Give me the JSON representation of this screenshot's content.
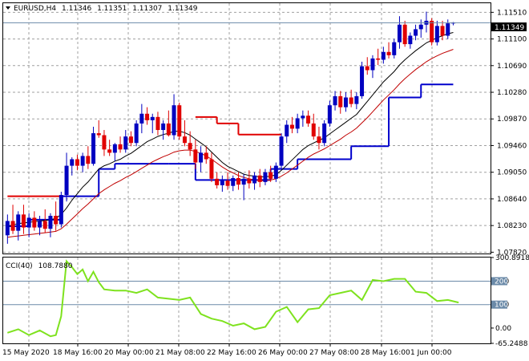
{
  "header": {
    "symbol": "EURUSD,H4",
    "open": "1.11346",
    "high": "1.11351",
    "low": "1.11307",
    "close": "1.11349"
  },
  "indicator": {
    "label": "CCI(40)",
    "value": "108.7880"
  },
  "current_price_label": "1.11349",
  "colors": {
    "bull": "#0000c0",
    "bear": "#e00000",
    "ma_fast": "#000000",
    "ma_slow": "#c00000",
    "step_support": "#0000cc",
    "step_resist": "#e00000",
    "cci": "#7ee21e",
    "level_line": "#6b8aa8",
    "grid": "#a0a0a0"
  },
  "chart_data": [
    {
      "type": "candlestick",
      "title": "EURUSD,H4",
      "ylim": [
        1.078,
        1.1165
      ],
      "y_ticks": [
        "1.11510",
        "1.11100",
        "1.10690",
        "1.10280",
        "1.09870",
        "1.09460",
        "1.09050",
        "1.08640",
        "1.08230",
        "1.07820"
      ],
      "x_ticks": [
        "15 May 2020",
        "18 May 16:00",
        "20 May 00:00",
        "21 May 08:00",
        "22 May 16:00",
        "26 May 00:00",
        "27 May 08:00",
        "28 May 16:00",
        "1 Jun 00:00"
      ],
      "current_price": 1.11349,
      "candles": [
        {
          "o": 1.0808,
          "h": 1.084,
          "l": 1.0795,
          "c": 1.083
        },
        {
          "o": 1.083,
          "h": 1.0855,
          "l": 1.081,
          "c": 1.0815
        },
        {
          "o": 1.0815,
          "h": 1.0845,
          "l": 1.08,
          "c": 1.084
        },
        {
          "o": 1.084,
          "h": 1.0855,
          "l": 1.081,
          "c": 1.082
        },
        {
          "o": 1.082,
          "h": 1.0842,
          "l": 1.0805,
          "c": 1.0835
        },
        {
          "o": 1.0835,
          "h": 1.0845,
          "l": 1.0815,
          "c": 1.082
        },
        {
          "o": 1.082,
          "h": 1.0838,
          "l": 1.0808,
          "c": 1.083
        },
        {
          "o": 1.083,
          "h": 1.0848,
          "l": 1.0812,
          "c": 1.0818
        },
        {
          "o": 1.0818,
          "h": 1.0842,
          "l": 1.0805,
          "c": 1.0838
        },
        {
          "o": 1.0838,
          "h": 1.086,
          "l": 1.0815,
          "c": 1.0825
        },
        {
          "o": 1.0825,
          "h": 1.0875,
          "l": 1.082,
          "c": 1.087
        },
        {
          "o": 1.087,
          "h": 1.0935,
          "l": 1.086,
          "c": 1.0915
        },
        {
          "o": 1.0915,
          "h": 1.0928,
          "l": 1.09,
          "c": 1.0925
        },
        {
          "o": 1.0925,
          "h": 1.0932,
          "l": 1.0908,
          "c": 1.0915
        },
        {
          "o": 1.0915,
          "h": 1.0935,
          "l": 1.0905,
          "c": 1.093
        },
        {
          "o": 1.093,
          "h": 1.0945,
          "l": 1.091,
          "c": 1.0918
        },
        {
          "o": 1.0918,
          "h": 1.0975,
          "l": 1.0915,
          "c": 1.0965
        },
        {
          "o": 1.0965,
          "h": 1.0985,
          "l": 1.0958,
          "c": 1.0962
        },
        {
          "o": 1.0962,
          "h": 1.097,
          "l": 1.093,
          "c": 1.094
        },
        {
          "o": 1.094,
          "h": 1.0955,
          "l": 1.093,
          "c": 1.0935
        },
        {
          "o": 1.0935,
          "h": 1.095,
          "l": 1.0922,
          "c": 1.0948
        },
        {
          "o": 1.0948,
          "h": 1.096,
          "l": 1.0935,
          "c": 1.094
        },
        {
          "o": 1.094,
          "h": 1.097,
          "l": 1.0935,
          "c": 1.096
        },
        {
          "o": 1.096,
          "h": 1.0968,
          "l": 1.0945,
          "c": 1.095
        },
        {
          "o": 1.095,
          "h": 1.0985,
          "l": 1.0945,
          "c": 1.098
        },
        {
          "o": 1.098,
          "h": 1.101,
          "l": 1.0965,
          "c": 1.0995
        },
        {
          "o": 1.0995,
          "h": 1.1005,
          "l": 1.0978,
          "c": 1.0985
        },
        {
          "o": 1.0985,
          "h": 1.0995,
          "l": 1.0965,
          "c": 1.099
        },
        {
          "o": 1.099,
          "h": 1.0998,
          "l": 1.0962,
          "c": 1.097
        },
        {
          "o": 1.097,
          "h": 1.0985,
          "l": 1.0955,
          "c": 1.098
        },
        {
          "o": 1.098,
          "h": 1.1,
          "l": 1.096,
          "c": 1.0962
        },
        {
          "o": 1.0962,
          "h": 1.1025,
          "l": 1.0955,
          "c": 1.1008
        },
        {
          "o": 1.1008,
          "h": 1.1012,
          "l": 1.0955,
          "c": 1.096
        },
        {
          "o": 1.096,
          "h": 1.0985,
          "l": 1.0945,
          "c": 1.095
        },
        {
          "o": 1.095,
          "h": 1.0968,
          "l": 1.093,
          "c": 1.094
        },
        {
          "o": 1.094,
          "h": 1.0955,
          "l": 1.091,
          "c": 1.092
        },
        {
          "o": 1.092,
          "h": 1.0945,
          "l": 1.0905,
          "c": 1.0935
        },
        {
          "o": 1.0935,
          "h": 1.0945,
          "l": 1.0918,
          "c": 1.0925
        },
        {
          "o": 1.0925,
          "h": 1.0935,
          "l": 1.089,
          "c": 1.0895
        },
        {
          "o": 1.0895,
          "h": 1.0905,
          "l": 1.088,
          "c": 1.0885
        },
        {
          "o": 1.0885,
          "h": 1.09,
          "l": 1.0875,
          "c": 1.0892
        },
        {
          "o": 1.0892,
          "h": 1.0905,
          "l": 1.0878,
          "c": 1.0884
        },
        {
          "o": 1.0884,
          "h": 1.09,
          "l": 1.0876,
          "c": 1.0896
        },
        {
          "o": 1.0896,
          "h": 1.0905,
          "l": 1.0878,
          "c": 1.0886
        },
        {
          "o": 1.0886,
          "h": 1.0902,
          "l": 1.0862,
          "c": 1.0895
        },
        {
          "o": 1.0895,
          "h": 1.0908,
          "l": 1.088,
          "c": 1.0888
        },
        {
          "o": 1.0888,
          "h": 1.0905,
          "l": 1.0878,
          "c": 1.09
        },
        {
          "o": 1.09,
          "h": 1.091,
          "l": 1.0882,
          "c": 1.089
        },
        {
          "o": 1.089,
          "h": 1.091,
          "l": 1.0885,
          "c": 1.0905
        },
        {
          "o": 1.0905,
          "h": 1.0915,
          "l": 1.089,
          "c": 1.0895
        },
        {
          "o": 1.0895,
          "h": 1.092,
          "l": 1.089,
          "c": 1.0915
        },
        {
          "o": 1.0915,
          "h": 1.0965,
          "l": 1.091,
          "c": 1.096
        },
        {
          "o": 1.096,
          "h": 1.0985,
          "l": 1.095,
          "c": 1.0978
        },
        {
          "o": 1.0978,
          "h": 1.099,
          "l": 1.0965,
          "c": 1.0972
        },
        {
          "o": 1.0972,
          "h": 1.0995,
          "l": 1.0965,
          "c": 1.0988
        },
        {
          "o": 1.0988,
          "h": 1.1,
          "l": 1.0975,
          "c": 1.0992
        },
        {
          "o": 1.0992,
          "h": 1.1,
          "l": 1.0975,
          "c": 1.098
        },
        {
          "o": 1.098,
          "h": 1.0995,
          "l": 1.0955,
          "c": 1.096
        },
        {
          "o": 1.096,
          "h": 1.0975,
          "l": 1.094,
          "c": 1.095
        },
        {
          "o": 1.095,
          "h": 1.0985,
          "l": 1.0945,
          "c": 1.098
        },
        {
          "o": 1.098,
          "h": 1.1015,
          "l": 1.0975,
          "c": 1.1008
        },
        {
          "o": 1.1008,
          "h": 1.103,
          "l": 1.1,
          "c": 1.1022
        },
        {
          "o": 1.1022,
          "h": 1.103,
          "l": 1.0995,
          "c": 1.1005
        },
        {
          "o": 1.1005,
          "h": 1.1028,
          "l": 1.0998,
          "c": 1.102
        },
        {
          "o": 1.102,
          "h": 1.1032,
          "l": 1.1005,
          "c": 1.101
        },
        {
          "o": 1.101,
          "h": 1.1028,
          "l": 1.1002,
          "c": 1.1022
        },
        {
          "o": 1.1022,
          "h": 1.1075,
          "l": 1.1018,
          "c": 1.1068
        },
        {
          "o": 1.1068,
          "h": 1.1082,
          "l": 1.1055,
          "c": 1.1062
        },
        {
          "o": 1.1062,
          "h": 1.1085,
          "l": 1.105,
          "c": 1.108
        },
        {
          "o": 1.108,
          "h": 1.1095,
          "l": 1.107,
          "c": 1.1078
        },
        {
          "o": 1.1078,
          "h": 1.1098,
          "l": 1.1072,
          "c": 1.109
        },
        {
          "o": 1.109,
          "h": 1.1105,
          "l": 1.108,
          "c": 1.1085
        },
        {
          "o": 1.1085,
          "h": 1.111,
          "l": 1.108,
          "c": 1.1105
        },
        {
          "o": 1.1105,
          "h": 1.1145,
          "l": 1.1095,
          "c": 1.1132
        },
        {
          "o": 1.1132,
          "h": 1.1138,
          "l": 1.1098,
          "c": 1.1102
        },
        {
          "o": 1.1102,
          "h": 1.112,
          "l": 1.1095,
          "c": 1.1115
        },
        {
          "o": 1.1115,
          "h": 1.1132,
          "l": 1.1108,
          "c": 1.1125
        },
        {
          "o": 1.1125,
          "h": 1.114,
          "l": 1.1112,
          "c": 1.1132
        },
        {
          "o": 1.1132,
          "h": 1.1152,
          "l": 1.112,
          "c": 1.1138
        },
        {
          "o": 1.1138,
          "h": 1.1142,
          "l": 1.11,
          "c": 1.1105
        },
        {
          "o": 1.1105,
          "h": 1.1138,
          "l": 1.11,
          "c": 1.113
        },
        {
          "o": 1.113,
          "h": 1.1138,
          "l": 1.1108,
          "c": 1.1115
        },
        {
          "o": 1.1115,
          "h": 1.114,
          "l": 1.111,
          "c": 1.1134
        },
        {
          "o": 1.1134,
          "h": 1.1136,
          "l": 1.1131,
          "c": 1.1135
        }
      ],
      "ma_fast": [
        1.0822,
        1.0824,
        1.0826,
        1.0827,
        1.0828,
        1.0829,
        1.083,
        1.0831,
        1.0832,
        1.0834,
        1.084,
        1.085,
        1.0862,
        1.0872,
        1.0882,
        1.089,
        1.09,
        1.091,
        1.0915,
        1.0918,
        1.0922,
        1.0925,
        1.093,
        1.0934,
        1.094,
        1.0946,
        1.0952,
        1.0956,
        1.096,
        1.0963,
        1.0965,
        1.0968,
        1.0968,
        1.0966,
        1.0962,
        1.0956,
        1.095,
        1.0944,
        1.0936,
        1.0928,
        1.092,
        1.0914,
        1.091,
        1.0906,
        1.0902,
        1.09,
        1.0899,
        1.0898,
        1.0898,
        1.0899,
        1.0901,
        1.0908,
        1.0916,
        1.0924,
        1.0932,
        1.094,
        1.0946,
        1.095,
        1.0954,
        1.0958,
        1.0964,
        1.097,
        1.0976,
        1.0982,
        1.0988,
        1.0994,
        1.1004,
        1.1014,
        1.1024,
        1.1034,
        1.1044,
        1.1052,
        1.106,
        1.107,
        1.1078,
        1.1085,
        1.1092,
        1.1098,
        1.1104,
        1.1108,
        1.1112,
        1.1115,
        1.1118,
        1.112
      ],
      "ma_slow": [
        1.0805,
        1.0806,
        1.0807,
        1.0808,
        1.0809,
        1.081,
        1.0811,
        1.0812,
        1.0813,
        1.0814,
        1.0818,
        1.0825,
        1.0833,
        1.0841,
        1.0849,
        1.0856,
        1.0864,
        1.0872,
        1.0878,
        1.0883,
        1.0888,
        1.0892,
        1.0897,
        1.0901,
        1.0906,
        1.0911,
        1.0916,
        1.0921,
        1.0925,
        1.0929,
        1.0932,
        1.0936,
        1.0938,
        1.0939,
        1.0939,
        1.0937,
        1.0934,
        1.093,
        1.0925,
        1.0919,
        1.0913,
        1.0908,
        1.0904,
        1.09,
        1.0897,
        1.0895,
        1.0893,
        1.0892,
        1.0892,
        1.0893,
        1.0895,
        1.0899,
        1.0904,
        1.091,
        1.0916,
        1.0922,
        1.0928,
        1.0933,
        1.0937,
        1.0941,
        1.0946,
        1.0951,
        1.0956,
        1.0962,
        1.0967,
        1.0973,
        1.0981,
        1.0989,
        1.0998,
        1.1007,
        1.1016,
        1.1024,
        1.1032,
        1.1041,
        1.1049,
        1.1056,
        1.1063,
        1.1069,
        1.1075,
        1.108,
        1.1084,
        1.1088,
        1.1091,
        1.1094
      ],
      "step_support": [
        {
          "from": 0,
          "to": 4,
          "y": 1.0822
        },
        {
          "from": 4,
          "to": 10,
          "y": 1.0832
        },
        {
          "from": 10,
          "to": 17,
          "y": 1.0868
        },
        {
          "from": 17,
          "to": 20,
          "y": 1.091
        },
        {
          "from": 20,
          "to": 30,
          "y": 1.0918
        },
        {
          "from": 30,
          "to": 35,
          "y": 1.0918
        },
        {
          "from": 35,
          "to": 49,
          "y": 1.0893
        },
        {
          "from": 49,
          "to": 54,
          "y": 1.091
        },
        {
          "from": 54,
          "to": 64,
          "y": 1.0925
        },
        {
          "from": 64,
          "to": 71,
          "y": 1.0945
        },
        {
          "from": 71,
          "to": 77,
          "y": 1.102
        },
        {
          "from": 77,
          "to": 83,
          "y": 1.104
        }
      ],
      "step_resist": [
        {
          "from": 0,
          "to": 10,
          "y": 1.0868
        },
        {
          "from": 35,
          "to": 39,
          "y": 1.099
        },
        {
          "from": 39,
          "to": 43,
          "y": 1.098
        },
        {
          "from": 43,
          "to": 51,
          "y": 1.0963
        }
      ]
    },
    {
      "type": "line",
      "title": "CCI(40) 108.7880",
      "ylim": [
        -65.2488,
        300.8918
      ],
      "y_ticks": [
        "300.8918",
        "200",
        "100",
        "0.00",
        "-65.2488"
      ],
      "levels": [
        200,
        100
      ],
      "x": [
        0,
        2,
        4,
        6,
        8,
        9,
        10,
        11,
        12,
        13,
        14,
        15,
        16,
        17,
        18,
        20,
        22,
        24,
        26,
        28,
        30,
        32,
        34,
        36,
        38,
        40,
        42,
        44,
        46,
        48,
        50,
        52,
        54,
        56,
        58,
        60,
        62,
        64,
        66,
        68,
        70,
        72,
        74,
        76,
        78,
        80,
        82,
        84
      ],
      "values": [
        -20,
        -5,
        -30,
        -10,
        -35,
        -30,
        50,
        285,
        260,
        230,
        250,
        200,
        240,
        195,
        165,
        160,
        160,
        150,
        165,
        130,
        125,
        120,
        130,
        60,
        40,
        30,
        10,
        20,
        -5,
        5,
        70,
        90,
        25,
        80,
        85,
        140,
        150,
        160,
        120,
        205,
        200,
        210,
        210,
        155,
        150,
        115,
        120,
        109
      ]
    }
  ]
}
